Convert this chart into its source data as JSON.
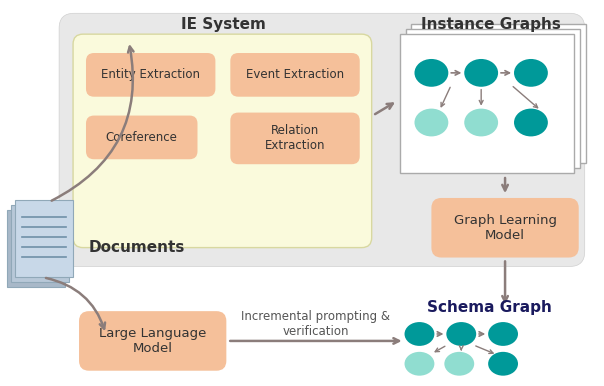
{
  "fig_width": 6.04,
  "fig_height": 3.86,
  "bg_color": "white",
  "top_region_color": "#e8e8e8",
  "ie_yellow_color": "#fafadc",
  "orange_box_color": "#f5c09a",
  "teal_dark": "#009999",
  "teal_light": "#90ddd0",
  "arrow_color": "#8b7d7b",
  "doc_colors": [
    "#c8d8e8",
    "#b8c8d8",
    "#a8b8c8"
  ],
  "doc_line_color": "#7090a8",
  "ie_system_label": "IE System",
  "instance_graphs_label": "Instance Graphs",
  "entity_extraction_label": "Entity Extraction",
  "event_extraction_label": "Event Extraction",
  "coreference_label": "Coreference",
  "relation_extraction_label": "Relation\nExtraction",
  "graph_learning_label": "Graph Learning\nModel",
  "documents_label": "Documents",
  "llm_label": "Large Language\nModel",
  "incremental_label": "Incremental prompting &\nverification",
  "schema_graph_label": "Schema Graph"
}
